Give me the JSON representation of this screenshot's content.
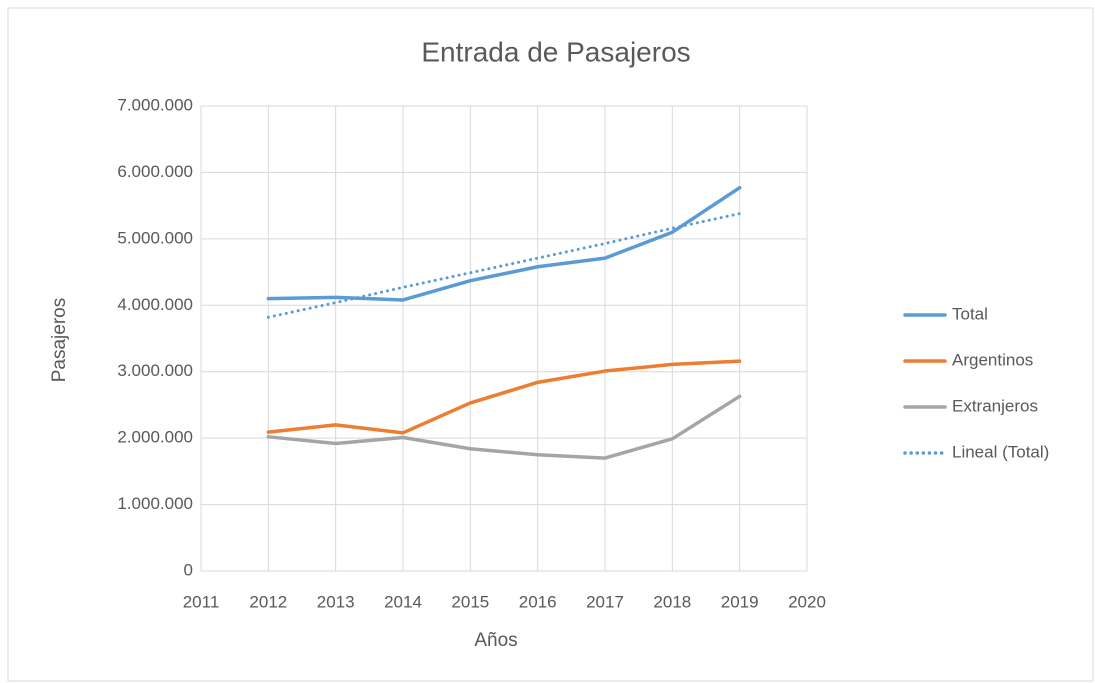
{
  "chart_data": {
    "type": "line",
    "title": "Entrada de Pasajeros",
    "x_label": "Años",
    "y_label": "Pasajeros",
    "x": [
      2012,
      2013,
      2014,
      2015,
      2016,
      2017,
      2018,
      2019
    ],
    "series": [
      {
        "name": "Total",
        "color": "#5b9bd5",
        "style": "solid",
        "values": [
          4100000,
          4120000,
          4080000,
          4370000,
          4580000,
          4710000,
          5100000,
          5770000
        ]
      },
      {
        "name": "Argentinos",
        "color": "#ed7d31",
        "style": "solid",
        "values": [
          2090000,
          2200000,
          2080000,
          2530000,
          2840000,
          3010000,
          3110000,
          3160000
        ]
      },
      {
        "name": "Extranjeros",
        "color": "#a5a5a5",
        "style": "solid",
        "values": [
          2020000,
          1920000,
          2010000,
          1840000,
          1750000,
          1700000,
          1990000,
          2630000
        ]
      },
      {
        "name": "Lineal (Total)",
        "color": "#5b9bd5",
        "style": "dotted",
        "values": [
          3820000,
          4040000,
          4270000,
          4490000,
          4710000,
          4930000,
          5160000,
          5380000
        ]
      }
    ],
    "xlim": [
      2011,
      2020
    ],
    "xticks": [
      2011,
      2012,
      2013,
      2014,
      2015,
      2016,
      2017,
      2018,
      2019,
      2020
    ],
    "ylim": [
      0,
      7000000
    ],
    "yticks": [
      0,
      {
        "value": 1000000,
        "label": "1.000.000"
      },
      {
        "value": 2000000,
        "label": "2.000.000"
      },
      {
        "value": 3000000,
        "label": "3.000.000"
      },
      {
        "value": 4000000,
        "label": "4.000.000"
      },
      {
        "value": 5000000,
        "label": "5.000.000"
      },
      {
        "value": 6000000,
        "label": "6.000.000"
      },
      {
        "value": 7000000,
        "label": "7.000.000"
      }
    ],
    "grid": true,
    "legend": "right"
  }
}
